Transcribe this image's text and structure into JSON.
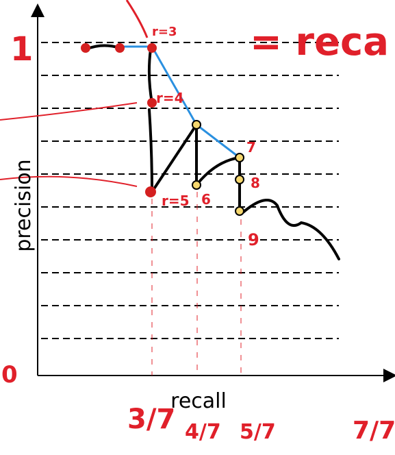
{
  "axes": {
    "y_label": "precision",
    "x_label": "recall"
  },
  "annotations": {
    "y_one": "1",
    "origin": "0",
    "equals": "= reca",
    "r3": "r=3",
    "r4": "r=4",
    "r5": "r=5",
    "r6": "6",
    "r7": "7",
    "r8": "8",
    "r9": "9",
    "x_three": "3/7",
    "x_four": "4/7",
    "x_five": "5/7",
    "x_seven": "7/7"
  }
}
